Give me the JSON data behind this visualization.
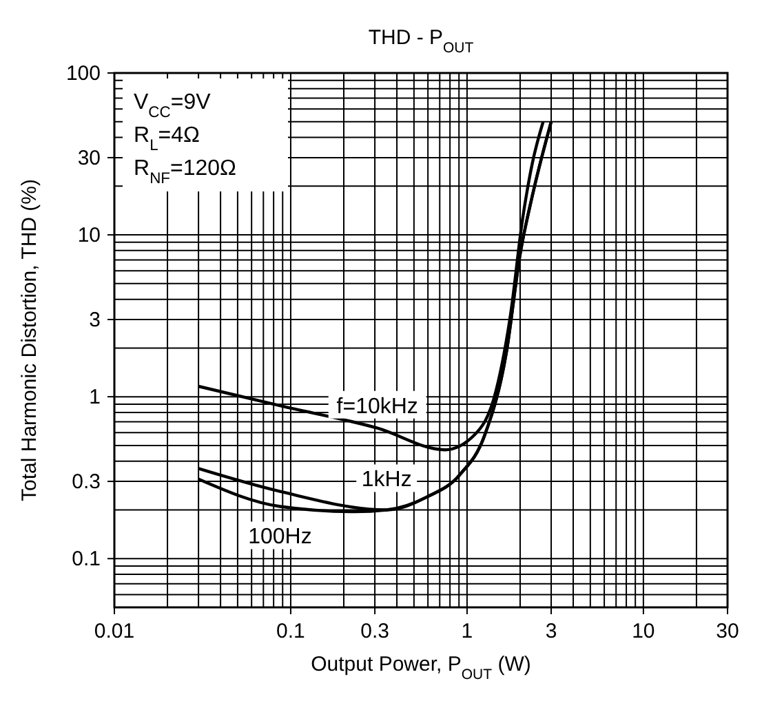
{
  "chart_data": {
    "type": "line",
    "title": "THD - P$_{OUT}$",
    "xlabel": "Output Power, P$_{OUT}$ (W)",
    "ylabel": "Total Harmonic Distortion, THD (%)",
    "log": "xy",
    "grid": true,
    "line_style": "solid",
    "xlim": [
      0.01,
      30
    ],
    "xticks": [
      0.01,
      0.1,
      0.3,
      1,
      3,
      10,
      30
    ],
    "ylim": [
      0.05,
      100
    ],
    "yticks": [
      0.1,
      0.3,
      1,
      3,
      10,
      30,
      100
    ],
    "annotations": [
      "V$_{CC}$=9V",
      "R$_{L}$=4Ω",
      "R$_{NF}$=120Ω"
    ],
    "series": [
      {
        "name": "f=10kHz",
        "color": "#000000",
        "x": [
          0.03,
          0.087,
          0.31,
          0.75,
          1.1,
          1.46,
          1.77,
          2.06,
          2.35,
          2.7
        ],
        "values": [
          1.16,
          0.88,
          0.64,
          0.47,
          0.58,
          1.09,
          3.3,
          12.3,
          28,
          50
        ]
      },
      {
        "name": "1kHz",
        "color": "#000000",
        "x": [
          0.03,
          0.087,
          0.35,
          0.59,
          0.91,
          1.26,
          1.67,
          2.0,
          2.35,
          3.0
        ],
        "values": [
          0.36,
          0.26,
          0.2,
          0.24,
          0.33,
          0.58,
          1.87,
          7.6,
          17.6,
          50
        ]
      },
      {
        "name": "100Hz",
        "color": "#000000",
        "x": [
          0.03,
          0.087,
          0.23,
          0.35,
          0.59,
          0.91,
          1.26,
          1.67,
          2.0,
          2.35,
          3.0
        ],
        "values": [
          0.31,
          0.21,
          0.195,
          0.2,
          0.24,
          0.33,
          0.58,
          1.87,
          7.6,
          17.6,
          50
        ]
      }
    ]
  }
}
